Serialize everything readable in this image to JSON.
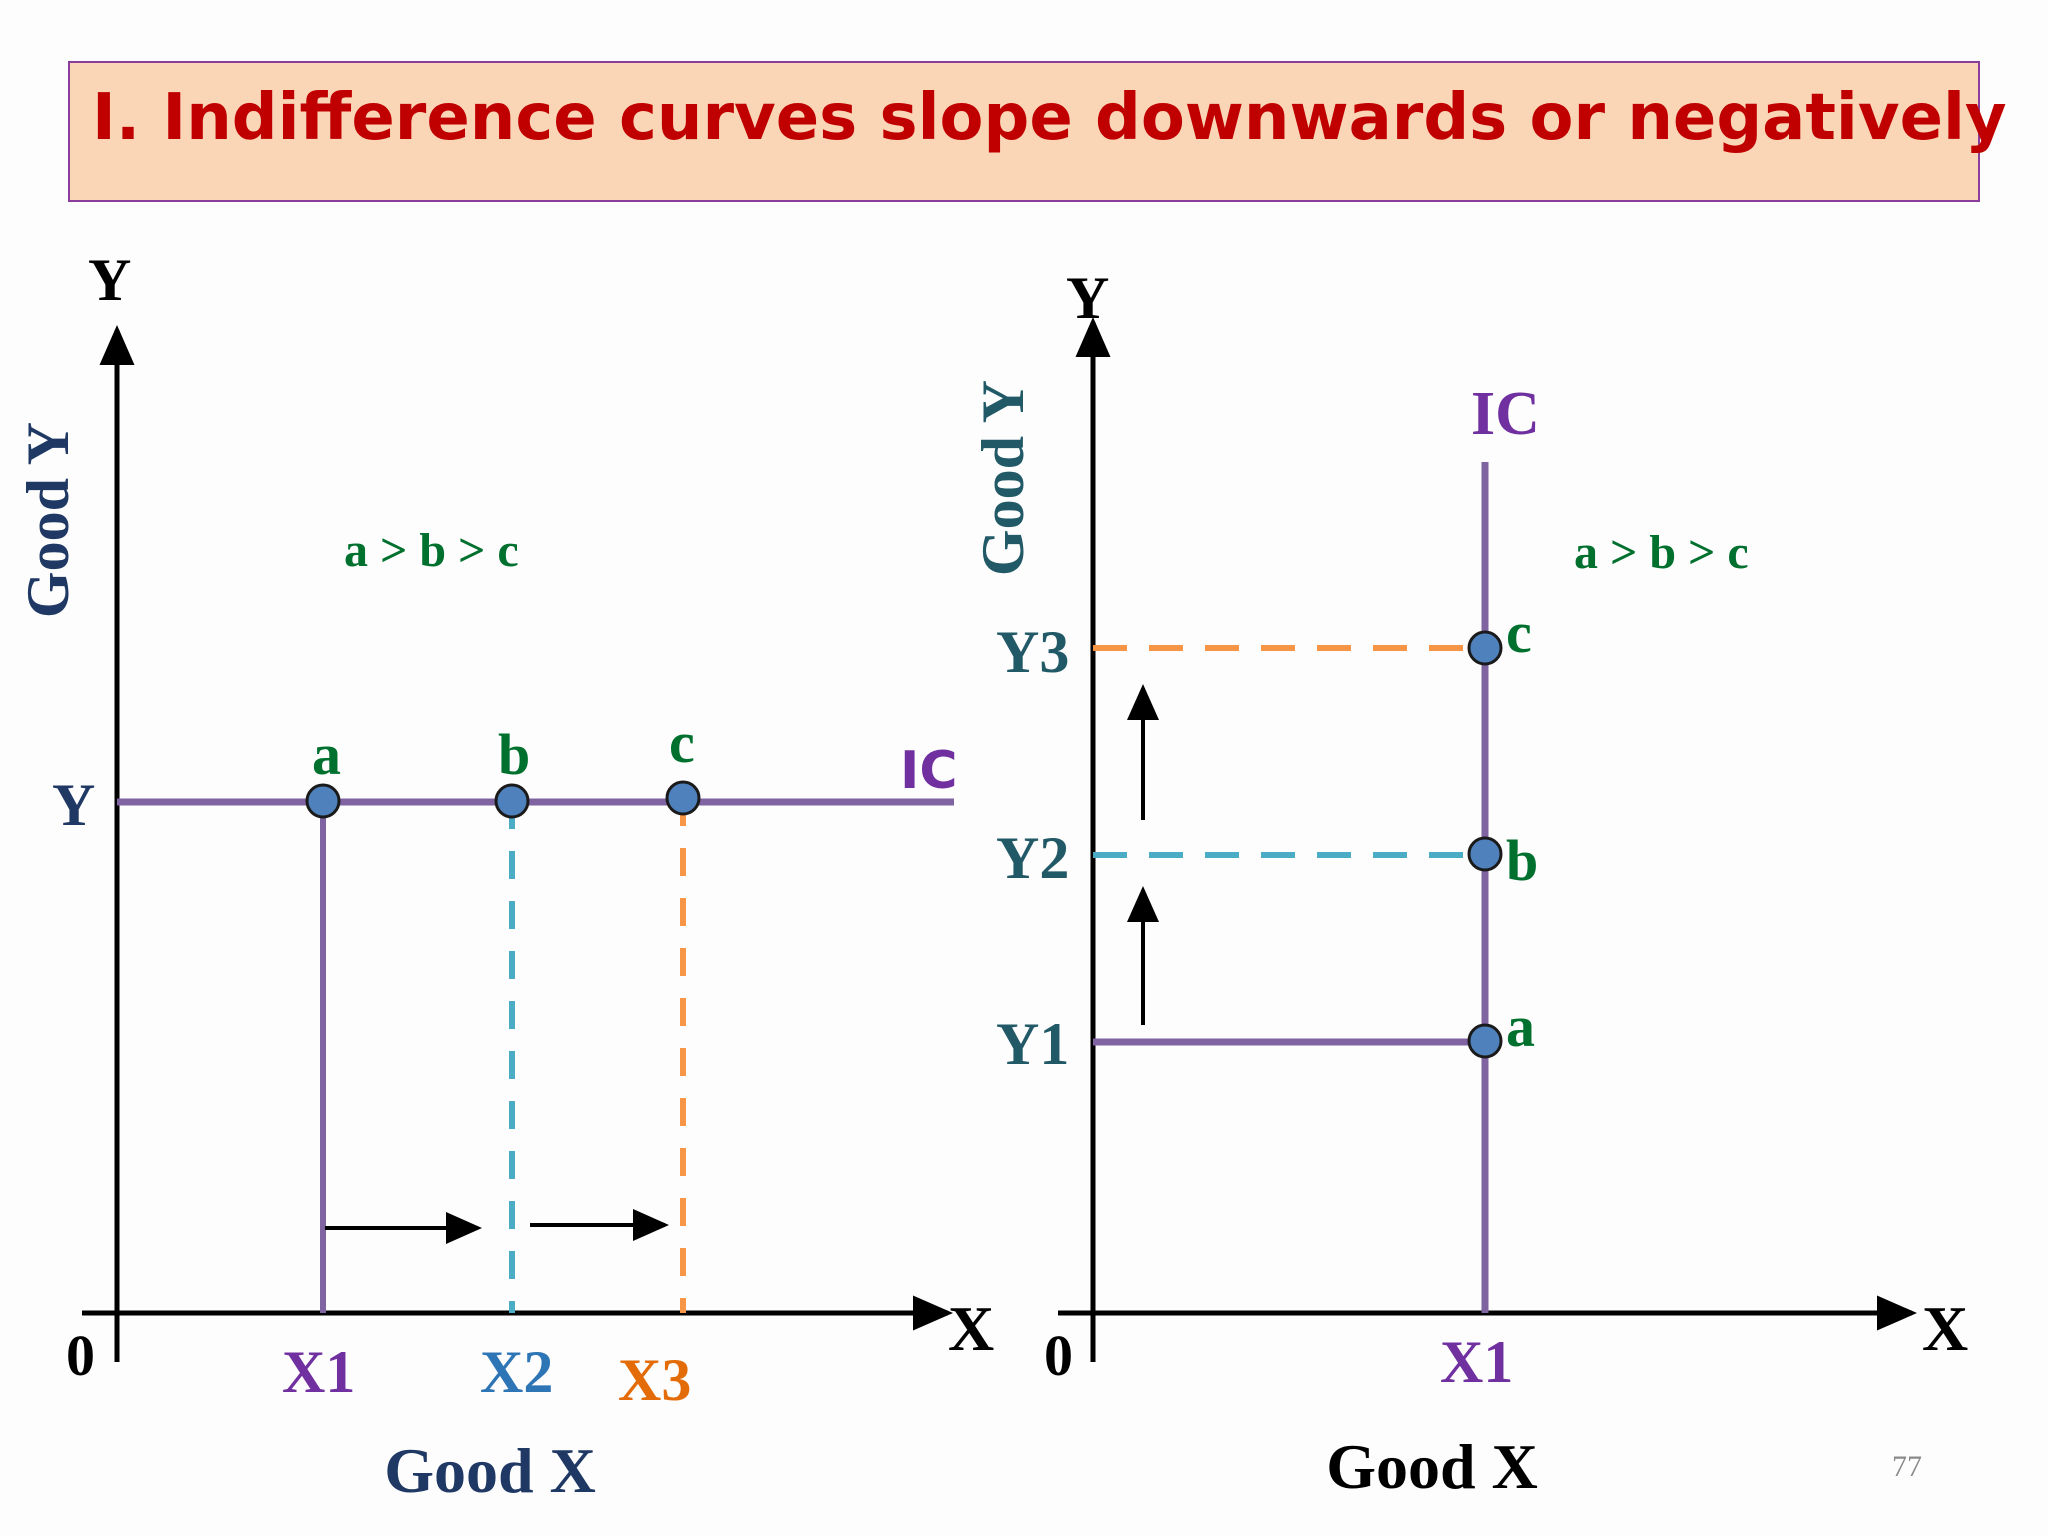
{
  "title": "I. Indifference curves slope downwards or negatively",
  "page_number": "77",
  "colors": {
    "title_bg": "#fad5b6",
    "title_border": "#8a3d9c",
    "title_text": "#c00000",
    "ic_purple": "#8064a2",
    "ic_label_purple": "#7030a0",
    "point_fill": "#4f81bd",
    "dash_blue": "#4bacc6",
    "dash_orange": "#f79646",
    "label_green": "#00702e",
    "label_navy": "#1f3864",
    "label_teal": "#215967",
    "x2_blue": "#2e75b6",
    "x3_orange": "#e36c09"
  },
  "left_panel": {
    "y_axis_letter": "Y",
    "x_axis_letter": "X",
    "origin": "0",
    "y_axis_title": "Good Y",
    "x_axis_title": "Good X",
    "y_level_label": "Y",
    "ic_label": "IC",
    "ranking": "a > b > c",
    "points": [
      {
        "label": "a",
        "x_label": "X1"
      },
      {
        "label": "b",
        "x_label": "X2"
      },
      {
        "label": "c",
        "x_label": "X3"
      }
    ]
  },
  "right_panel": {
    "y_axis_letter": "Y",
    "x_axis_letter": "X",
    "origin": "0",
    "y_axis_title": "Good Y",
    "x_axis_title": "Good X",
    "x_level_label": "X1",
    "ic_label": "IC",
    "ranking": "a > b > c",
    "points": [
      {
        "label": "a",
        "y_label": "Y1"
      },
      {
        "label": "b",
        "y_label": "Y2"
      },
      {
        "label": "c",
        "y_label": "Y3"
      }
    ]
  }
}
